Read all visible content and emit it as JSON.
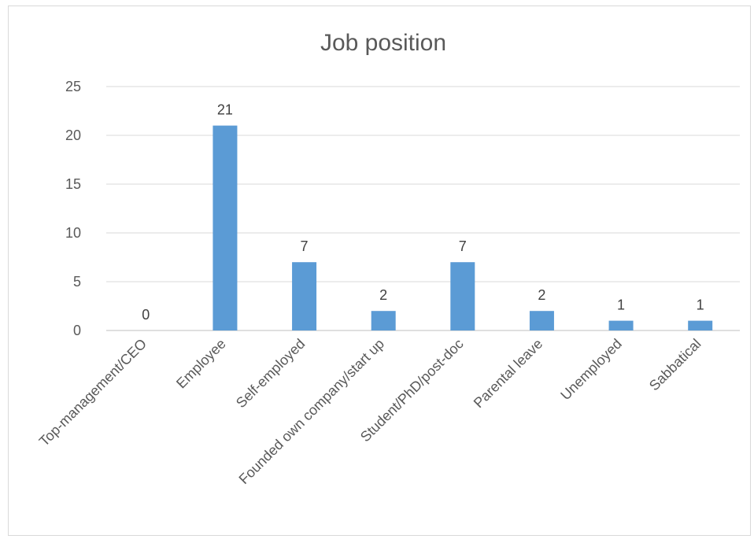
{
  "chart_data": {
    "type": "bar",
    "title": "Job position",
    "xlabel": "",
    "ylabel": "",
    "categories": [
      "Top-management/CEO",
      "Employee",
      "Self-employed",
      "Founded own company/start up",
      "Student/PhD/post-doc",
      "Parental leave",
      "Unemployed",
      "Sabbatical"
    ],
    "values": [
      0,
      21,
      7,
      2,
      7,
      2,
      1,
      1
    ],
    "ylim": [
      0,
      25
    ],
    "yticks": [
      0,
      5,
      10,
      15,
      20,
      25
    ],
    "grid": true,
    "legend": "none",
    "data_labels": true,
    "bar_color": "#5b9bd5",
    "grid_color": "#d9d9d9",
    "text_color": "#595959"
  }
}
